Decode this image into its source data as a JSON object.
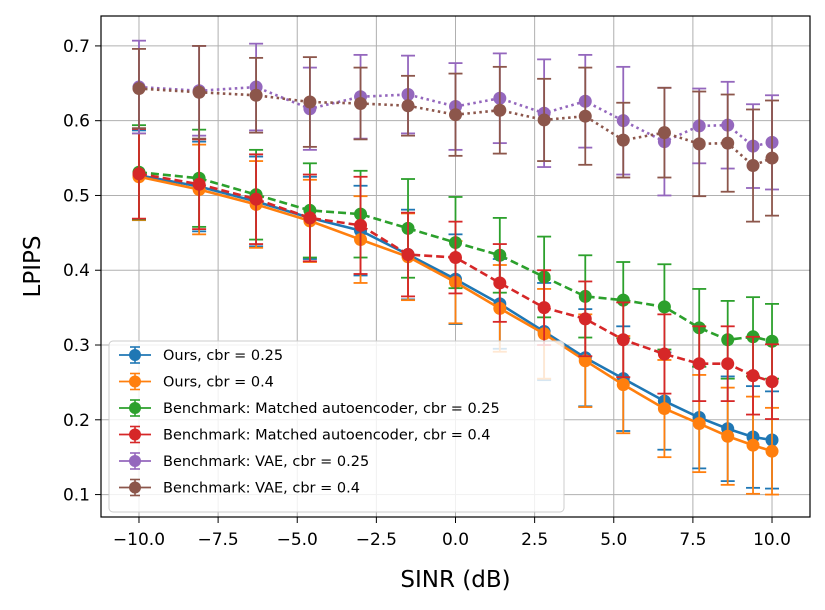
{
  "chart_data": {
    "type": "line",
    "title": "",
    "xlabel": "SINR (dB)",
    "ylabel": "LPIPS",
    "xlim": [
      -11.2,
      11.2
    ],
    "ylim": [
      0.07,
      0.74
    ],
    "grid": true,
    "legend_position": "bottom-left",
    "xticks": [
      -10,
      -7.5,
      -5,
      -2.5,
      0,
      2.5,
      5,
      7.5,
      10
    ],
    "xtick_labels": [
      "−10.0",
      "−7.5",
      "−5.0",
      "−2.5",
      "0.0",
      "2.5",
      "5.0",
      "7.5",
      "10.0"
    ],
    "yticks": [
      0.1,
      0.2,
      0.3,
      0.4,
      0.5,
      0.6,
      0.7
    ],
    "ytick_labels": [
      "0.1",
      "0.2",
      "0.3",
      "0.4",
      "0.5",
      "0.6",
      "0.7"
    ],
    "x": [
      -10,
      -8.1,
      -6.3,
      -4.6,
      -3.0,
      -1.5,
      0,
      1.4,
      2.8,
      4.1,
      5.3,
      6.6,
      7.7,
      8.6,
      9.4,
      10
    ],
    "series": [
      {
        "name": "Ours, cbr = 0.25",
        "color": "#1f77b4",
        "style": "solid",
        "values": [
          0.527,
          0.512,
          0.492,
          0.47,
          0.453,
          0.421,
          0.388,
          0.355,
          0.318,
          0.283,
          0.255,
          0.225,
          0.203,
          0.188,
          0.177,
          0.173
        ],
        "errors": [
          0.06,
          0.06,
          0.06,
          0.055,
          0.06,
          0.06,
          0.06,
          0.06,
          0.065,
          0.065,
          0.07,
          0.065,
          0.068,
          0.07,
          0.068,
          0.065
        ]
      },
      {
        "name": "Ours, cbr = 0.4",
        "color": "#ff7f0e",
        "style": "solid",
        "values": [
          0.525,
          0.508,
          0.488,
          0.466,
          0.441,
          0.418,
          0.384,
          0.349,
          0.315,
          0.279,
          0.247,
          0.215,
          0.195,
          0.178,
          0.166,
          0.158
        ],
        "errors": [
          0.058,
          0.06,
          0.058,
          0.055,
          0.058,
          0.058,
          0.055,
          0.058,
          0.06,
          0.062,
          0.065,
          0.065,
          0.065,
          0.065,
          0.065,
          0.058
        ]
      },
      {
        "name": "Benchmark: Matched autoencoder, cbr = 0.25",
        "color": "#2ca02c",
        "style": "dashed",
        "values": [
          0.531,
          0.523,
          0.501,
          0.48,
          0.475,
          0.456,
          0.437,
          0.42,
          0.391,
          0.365,
          0.36,
          0.351,
          0.323,
          0.307,
          0.311,
          0.305
        ],
        "errors": [
          0.063,
          0.065,
          0.06,
          0.063,
          0.058,
          0.066,
          0.061,
          0.05,
          0.054,
          0.055,
          0.051,
          0.057,
          0.052,
          0.052,
          0.053,
          0.05
        ]
      },
      {
        "name": "Benchmark: Matched autoencoder, cbr = 0.4",
        "color": "#d62728",
        "style": "dashed",
        "values": [
          0.529,
          0.515,
          0.495,
          0.47,
          0.46,
          0.421,
          0.417,
          0.383,
          0.35,
          0.335,
          0.307,
          0.288,
          0.275,
          0.275,
          0.259,
          0.251
        ],
        "errors": [
          0.06,
          0.06,
          0.06,
          0.058,
          0.065,
          0.056,
          0.048,
          0.052,
          0.05,
          0.05,
          0.05,
          0.053,
          0.05,
          0.05,
          0.052,
          0.05
        ]
      },
      {
        "name": "Benchmark: VAE, cbr = 0.25",
        "color": "#9467bd",
        "style": "dotted",
        "values": [
          0.645,
          0.64,
          0.645,
          0.616,
          0.632,
          0.635,
          0.619,
          0.63,
          0.61,
          0.626,
          0.6,
          0.572,
          0.593,
          0.594,
          0.566,
          0.571
        ],
        "errors": [
          0.062,
          0.06,
          0.058,
          0.055,
          0.056,
          0.052,
          0.058,
          0.06,
          0.072,
          0.062,
          0.072,
          0.072,
          0.05,
          0.058,
          0.056,
          0.063
        ]
      },
      {
        "name": "Benchmark: VAE, cbr = 0.4",
        "color": "#8c564b",
        "style": "dotted",
        "values": [
          0.643,
          0.638,
          0.634,
          0.625,
          0.623,
          0.62,
          0.608,
          0.614,
          0.601,
          0.606,
          0.574,
          0.584,
          0.569,
          0.57,
          0.54,
          0.55
        ],
        "errors": [
          0.053,
          0.062,
          0.05,
          0.06,
          0.048,
          0.04,
          0.055,
          0.058,
          0.055,
          0.065,
          0.05,
          0.06,
          0.07,
          0.065,
          0.075,
          0.077
        ]
      }
    ]
  }
}
